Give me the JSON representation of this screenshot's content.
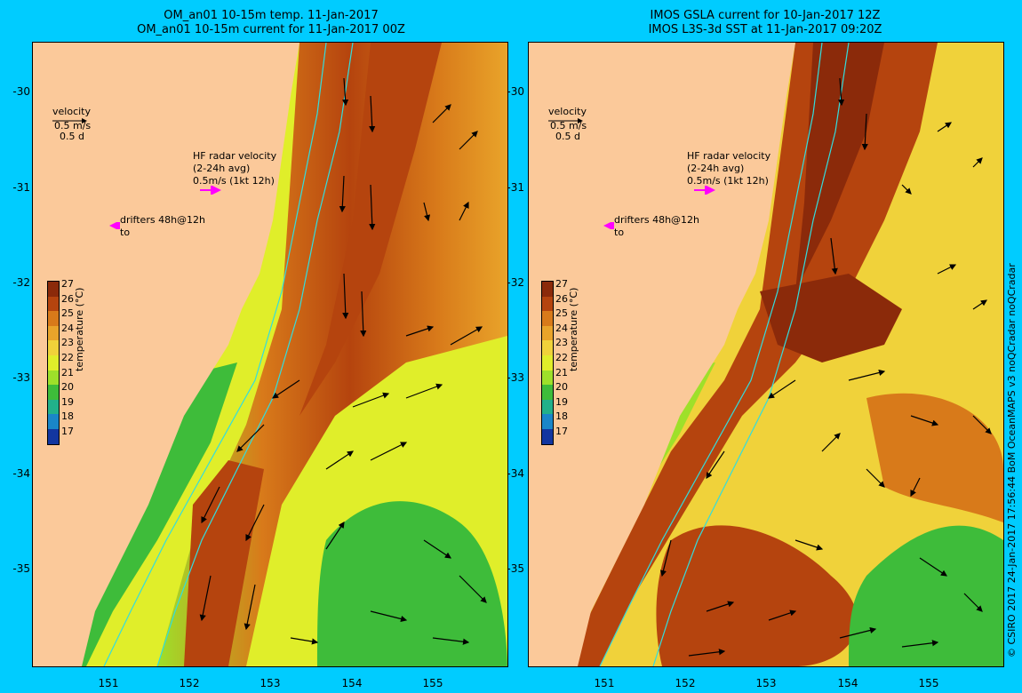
{
  "left": {
    "title_line1": "OM_an01 10-15m temp. 11-Jan-2017",
    "title_line2": "OM_an01 10-15m current for 11-Jan-2017 00Z",
    "velocity_label": "velocity",
    "velocity_scale": "0.5 m/s",
    "velocity_time": "0.5 d",
    "hf_line1": "HF radar velocity",
    "hf_line2": "(2-24h avg)",
    "hf_line3": "0.5m/s (1kt 12h)",
    "drifters_line1": "drifters 48h@12h",
    "drifters_line2": "to",
    "colorbar_title": "temperature (°C)"
  },
  "right": {
    "title_line1": "IMOS GSLA current for 10-Jan-2017 12Z",
    "title_line2": "IMOS L3S-3d SST at 11-Jan-2017 09:20Z",
    "velocity_label": "velocity",
    "velocity_scale": "0.5 m/s",
    "velocity_time": "0.5 d",
    "hf_line1": "HF radar velocity",
    "hf_line2": "(2-24h avg)",
    "hf_line3": "0.5m/s (1kt 12h)",
    "drifters_line1": "drifters 48h@12h",
    "drifters_line2": "to",
    "colorbar_title": "temperature (°C)"
  },
  "y_ticks": [
    "-30",
    "-31",
    "-32",
    "-33",
    "-34",
    "-35"
  ],
  "x_ticks": [
    "151",
    "152",
    "153",
    "154",
    "155"
  ],
  "colorbar": {
    "labels": [
      "27",
      "26",
      "25",
      "24",
      "23",
      "22",
      "21",
      "20",
      "19",
      "18",
      "17"
    ],
    "colors": [
      "#8b2a0a",
      "#b5440e",
      "#d87a1a",
      "#e9a42a",
      "#f0d23a",
      "#e0ee2a",
      "#9ee02a",
      "#3ebc3a",
      "#22b08a",
      "#1a86c8",
      "#1236a0"
    ]
  },
  "credit": "© CSIRO 2017   24-Jan-2017 17:56:44 BoM OceanMAPS v3 noQCradar noQCradar",
  "colors": {
    "background": "#00ccff",
    "land": "#fbc99a",
    "hf_arrow": "#ff00ff",
    "isobath": "#33dddd"
  }
}
